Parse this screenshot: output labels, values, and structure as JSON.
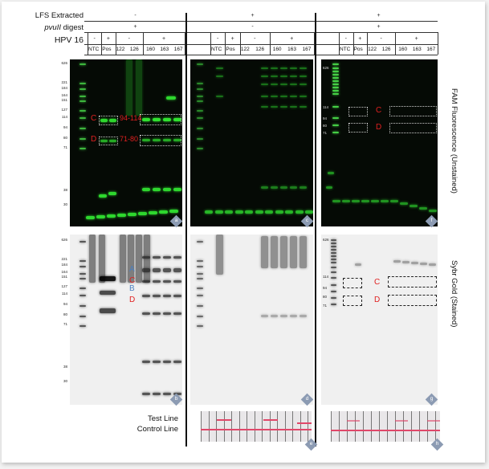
{
  "header": {
    "row_labels": {
      "lfs": "LFS Extracted",
      "pvuii_italic": "pvuII",
      "pvuii_rest": " digest",
      "hpv": "HPV 16"
    },
    "panels": [
      {
        "lfs": "-",
        "pvuii": "+",
        "hpv": [
          "-",
          "+",
          "-",
          "+"
        ],
        "lanes": [
          "NTC",
          "Pos",
          "122",
          "126",
          "160",
          "163",
          "167"
        ]
      },
      {
        "lfs": "+",
        "pvuii": "-",
        "hpv": [
          "-",
          "+",
          "-",
          "+"
        ],
        "lanes": [
          "NTC",
          "Pos",
          "122",
          "126",
          "160",
          "163",
          "167"
        ]
      },
      {
        "lfs": "+",
        "pvuii": "+",
        "hpv": [
          "-",
          "+",
          "-",
          "+"
        ],
        "lanes": [
          "NTC",
          "Pos",
          "122",
          "126",
          "160",
          "163",
          "167"
        ]
      }
    ]
  },
  "ladder_full": [
    "626",
    "221",
    "184",
    "164",
    "151",
    "127",
    "114",
    "94",
    "80",
    "71",
    "38",
    "30"
  ],
  "ladder_short": [
    "626",
    "114",
    "94",
    "80",
    "71"
  ],
  "annotations": {
    "a": {
      "c": "C",
      "d": "D",
      "range_c": "94-114",
      "range_d": "71-80"
    },
    "b": [
      "A",
      "C",
      "B",
      "D"
    ],
    "f": {
      "c": "C",
      "d": "D"
    },
    "g": {
      "c": "C",
      "d": "D"
    }
  },
  "panel_letters": [
    "a",
    "b",
    "c",
    "d",
    "e",
    "f",
    "g",
    "h"
  ],
  "side_labels": {
    "fam": "FAM Fluorescence (Unstained)",
    "sybr": "Sybr Gold (Stained)"
  },
  "strip_labels": {
    "test": "Test Line",
    "control": "Control Line"
  },
  "colors": {
    "fam_band": "#38e838",
    "annotation_red": "#e02020",
    "annotation_blue": "#4a7fc0",
    "lfs_line": "#e0486a"
  }
}
